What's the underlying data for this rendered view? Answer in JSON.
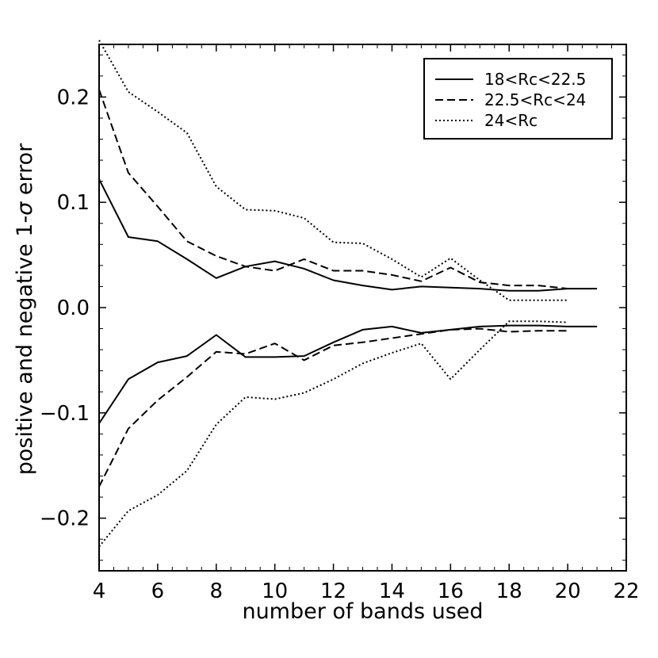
{
  "chart_data": {
    "type": "line",
    "title": "",
    "xlabel": "number of bands used",
    "ylabel_prefix": "positive and negative 1-",
    "ylabel_sigma": "σ",
    "ylabel_suffix": " error",
    "xlim": [
      4,
      22
    ],
    "ylim": [
      -0.25,
      0.25
    ],
    "xticks": [
      4,
      6,
      8,
      10,
      12,
      14,
      16,
      18,
      20,
      22
    ],
    "xtick_labels": [
      "4",
      "6",
      "8",
      "10",
      "12",
      "14",
      "16",
      "18",
      "20",
      "22"
    ],
    "yticks": [
      -0.2,
      -0.1,
      0.0,
      0.1,
      0.2
    ],
    "ytick_labels": [
      "−0.2",
      "−0.1",
      "0.0",
      "0.1",
      "0.2"
    ],
    "legend_position": "top-right",
    "series": [
      {
        "name": "18<Rc<22.5",
        "style": "solid",
        "color": "#000000",
        "x": [
          4,
          5,
          6,
          7,
          8,
          9,
          10,
          11,
          12,
          13,
          14,
          15,
          16,
          17,
          18,
          19,
          20,
          21
        ],
        "upper": [
          0.122,
          0.067,
          0.063,
          0.046,
          0.028,
          0.039,
          0.044,
          0.037,
          0.026,
          0.021,
          0.017,
          0.02,
          0.019,
          0.018,
          0.016,
          0.016,
          0.018,
          0.018
        ],
        "lower": [
          -0.11,
          -0.068,
          -0.052,
          -0.046,
          -0.026,
          -0.047,
          -0.047,
          -0.046,
          -0.033,
          -0.021,
          -0.018,
          -0.024,
          -0.021,
          -0.018,
          -0.017,
          -0.017,
          -0.018,
          -0.018
        ]
      },
      {
        "name": "22.5<Rc<24",
        "style": "dashed",
        "color": "#000000",
        "x": [
          4,
          5,
          6,
          7,
          8,
          9,
          10,
          11,
          12,
          13,
          14,
          15,
          16,
          17,
          18,
          19,
          20
        ],
        "upper": [
          0.207,
          0.128,
          0.096,
          0.063,
          0.049,
          0.039,
          0.035,
          0.046,
          0.035,
          0.035,
          0.031,
          0.025,
          0.038,
          0.024,
          0.021,
          0.021,
          0.018
        ],
        "lower": [
          -0.17,
          -0.115,
          -0.088,
          -0.066,
          -0.042,
          -0.044,
          -0.034,
          -0.05,
          -0.036,
          -0.033,
          -0.029,
          -0.025,
          -0.021,
          -0.02,
          -0.023,
          -0.022,
          -0.022
        ]
      },
      {
        "name": "24<Rc",
        "style": "dotted",
        "color": "#000000",
        "x": [
          4,
          5,
          6,
          7,
          8,
          9,
          10,
          11,
          12,
          13,
          14,
          15,
          16,
          17,
          18,
          19,
          20
        ],
        "upper": [
          0.254,
          0.205,
          0.186,
          0.166,
          0.115,
          0.093,
          0.092,
          0.085,
          0.062,
          0.061,
          0.046,
          0.029,
          0.047,
          0.026,
          0.007,
          0.007,
          0.007
        ],
        "lower": [
          -0.227,
          -0.193,
          -0.178,
          -0.155,
          -0.111,
          -0.085,
          -0.087,
          -0.081,
          -0.068,
          -0.053,
          -0.043,
          -0.034,
          -0.068,
          -0.04,
          -0.013,
          -0.013,
          -0.014
        ]
      }
    ]
  }
}
